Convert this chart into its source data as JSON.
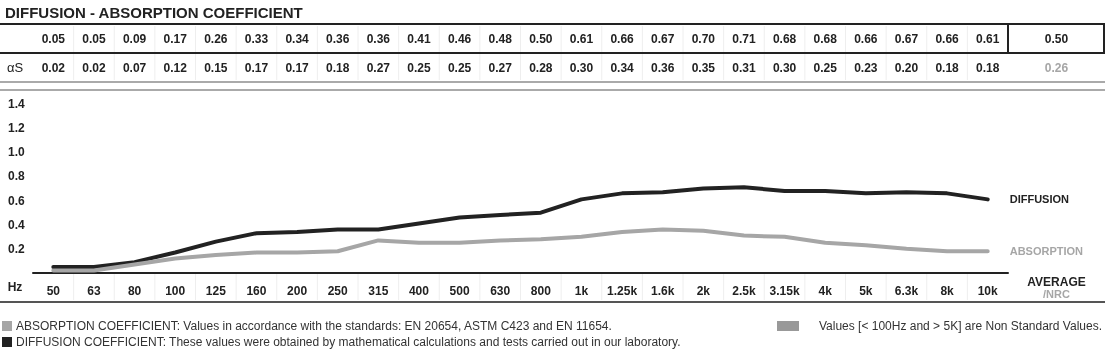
{
  "chart_data": [
    {
      "type": "line",
      "title": "DIFFUSION - ABSORPTION COEFFICIENT",
      "xlabel": "Hz",
      "categories": [
        "50",
        "63",
        "80",
        "100",
        "125",
        "160",
        "200",
        "250",
        "315",
        "400",
        "500",
        "630",
        "800",
        "1k",
        "1.25k",
        "1.6k",
        "2k",
        "2.5k",
        "3.15k",
        "4k",
        "5k",
        "6.3k",
        "8k",
        "10k"
      ],
      "series": [
        {
          "name": "DIFFUSION",
          "color": "#222222",
          "values": [
            0.05,
            0.05,
            0.09,
            0.17,
            0.26,
            0.33,
            0.34,
            0.36,
            0.36,
            0.41,
            0.46,
            0.48,
            0.5,
            0.61,
            0.66,
            0.67,
            0.7,
            0.71,
            0.68,
            0.68,
            0.66,
            0.67,
            0.66,
            0.61
          ]
        },
        {
          "name": "ABSORPTION",
          "color": "#a6a6a6",
          "values": [
            0.02,
            0.02,
            0.07,
            0.12,
            0.15,
            0.17,
            0.17,
            0.18,
            0.27,
            0.25,
            0.25,
            0.27,
            0.28,
            0.3,
            0.34,
            0.36,
            0.35,
            0.31,
            0.3,
            0.25,
            0.23,
            0.2,
            0.18,
            0.18
          ]
        }
      ],
      "ylim": [
        0,
        1.5
      ],
      "yticks": [
        0.2,
        0.4,
        0.6,
        0.8,
        {
          "value": 1,
          "label": "1.0"
        },
        1.2,
        1.4
      ],
      "grid": false,
      "annotations": [
        "αS",
        "AVERAGE",
        "/NRC",
        "ABSORPTION COEFFICIENT: Values in accordance with the standards: EN 20654, ASTM C423 and EN 11654.",
        "DIFFUSION COEFFICIENT: These values were obtained by mathematical calculations and tests carried out in our laboratory.",
        "Values [< 100Hz and > 5K] are Non Standard Values."
      ]
    },
    {
      "type": "other",
      "annotations": [
        "0.05",
        "0.05",
        "0.09",
        "0.17",
        "0.26",
        "0.33",
        "0.34",
        "0.36",
        "0.36",
        "0.41",
        "0.46",
        "0.48",
        "0.50",
        "0.61",
        "0.66",
        "0.67",
        "0.70",
        "0.71",
        "0.68",
        "0.68",
        "0.66",
        "0.67",
        "0.66",
        "0.61",
        "0.50",
        "0.02",
        "0.02",
        "0.07",
        "0.12",
        "0.15",
        "0.17",
        "0.17",
        "0.18",
        "0.27",
        "0.25",
        "0.25",
        "0.27",
        "0.28",
        "0.30",
        "0.34",
        "0.36",
        "0.35",
        "0.31",
        "0.30",
        "0.25",
        "0.23",
        "0.20",
        "0.18",
        "0.18",
        "0.26"
      ]
    }
  ]
}
